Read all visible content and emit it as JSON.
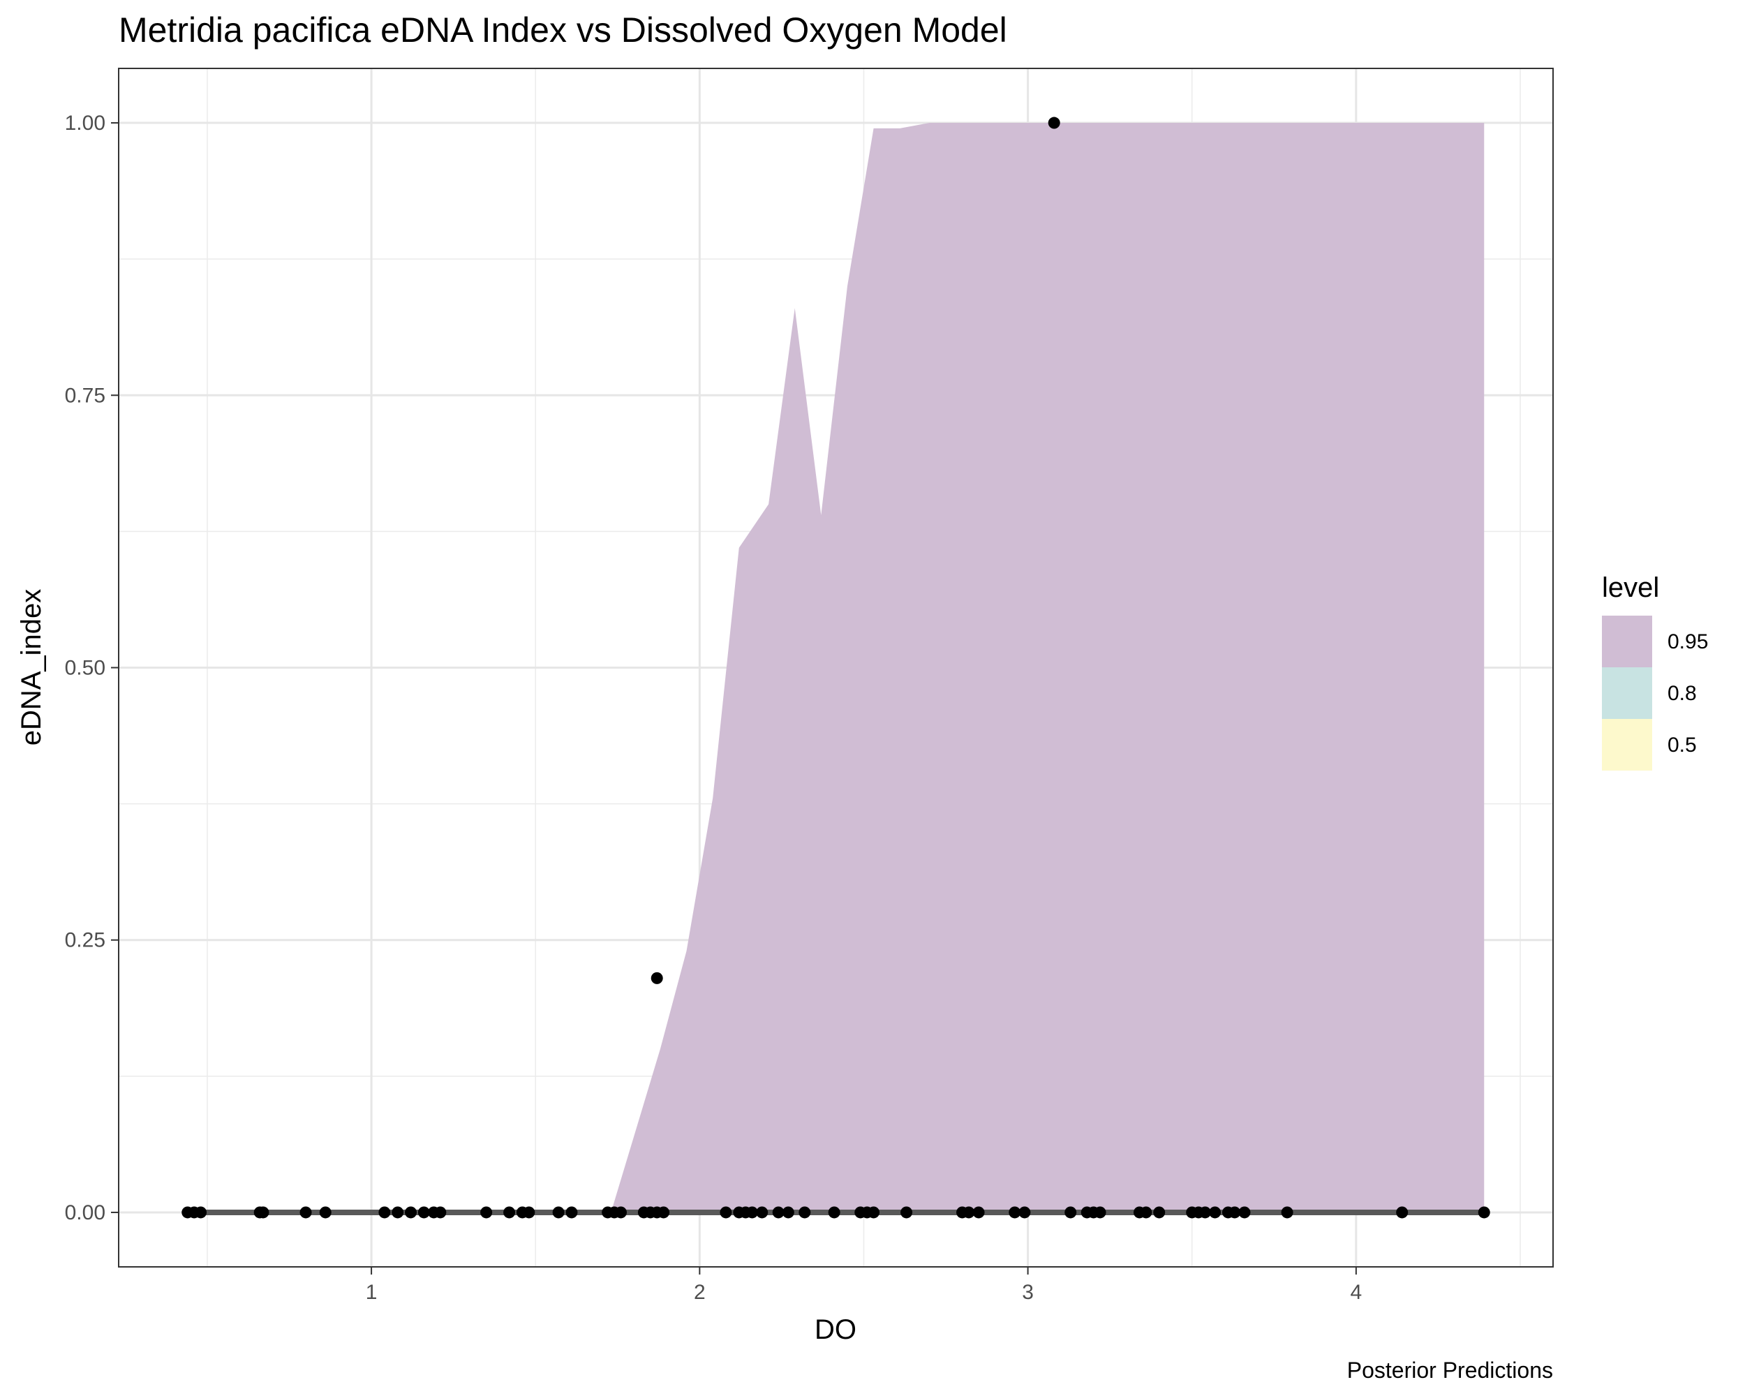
{
  "chart_data": {
    "type": "area",
    "title": "Metridia pacifica eDNA Index vs Dissolved Oxygen Model",
    "xlabel": "DO",
    "ylabel": "eDNA_index",
    "caption": "Posterior Predictions",
    "xlim": [
      0.23,
      4.6
    ],
    "ylim": [
      -0.05,
      1.05
    ],
    "x_ticks": [
      1,
      2,
      3,
      4
    ],
    "x_tick_labels": [
      "1",
      "2",
      "3",
      "4"
    ],
    "y_ticks": [
      0,
      0.25,
      0.5,
      0.75,
      1
    ],
    "y_tick_labels": [
      "0.00",
      "0.25",
      "0.50",
      "0.75",
      "1.00"
    ],
    "grid": true,
    "legend": {
      "title": "level",
      "position": "right",
      "entries": [
        {
          "label": "0.95",
          "color": "#d0bdd4"
        },
        {
          "label": "0.8",
          "color": "#c8e3e2"
        },
        {
          "label": "0.5",
          "color": "#fdf9cc"
        }
      ]
    },
    "band": {
      "level": "0.95",
      "color": "#d0bdd4",
      "lower": 0,
      "upper": [
        {
          "x": 0.44,
          "y": 0
        },
        {
          "x": 1.73,
          "y": 0
        },
        {
          "x": 1.8,
          "y": 0.07
        },
        {
          "x": 1.88,
          "y": 0.15
        },
        {
          "x": 1.96,
          "y": 0.24
        },
        {
          "x": 2.04,
          "y": 0.38
        },
        {
          "x": 2.12,
          "y": 0.61
        },
        {
          "x": 2.21,
          "y": 0.65
        },
        {
          "x": 2.29,
          "y": 0.83
        },
        {
          "x": 2.37,
          "y": 0.64
        },
        {
          "x": 2.45,
          "y": 0.85
        },
        {
          "x": 2.53,
          "y": 0.995
        },
        {
          "x": 2.61,
          "y": 0.995
        },
        {
          "x": 2.7,
          "y": 1.0
        },
        {
          "x": 4.39,
          "y": 1.0
        }
      ]
    },
    "median_line": {
      "color": "#595959",
      "points": [
        {
          "x": 0.44,
          "y": 0
        },
        {
          "x": 4.39,
          "y": 0
        }
      ]
    },
    "points": [
      {
        "x": 0.44,
        "y": 0
      },
      {
        "x": 0.46,
        "y": 0
      },
      {
        "x": 0.48,
        "y": 0
      },
      {
        "x": 0.66,
        "y": 0
      },
      {
        "x": 0.67,
        "y": 0
      },
      {
        "x": 0.8,
        "y": 0
      },
      {
        "x": 0.86,
        "y": 0
      },
      {
        "x": 1.04,
        "y": 0
      },
      {
        "x": 1.08,
        "y": 0
      },
      {
        "x": 1.12,
        "y": 0
      },
      {
        "x": 1.16,
        "y": 0
      },
      {
        "x": 1.19,
        "y": 0
      },
      {
        "x": 1.21,
        "y": 0
      },
      {
        "x": 1.35,
        "y": 0
      },
      {
        "x": 1.42,
        "y": 0
      },
      {
        "x": 1.46,
        "y": 0
      },
      {
        "x": 1.48,
        "y": 0
      },
      {
        "x": 1.57,
        "y": 0
      },
      {
        "x": 1.61,
        "y": 0
      },
      {
        "x": 1.72,
        "y": 0
      },
      {
        "x": 1.74,
        "y": 0
      },
      {
        "x": 1.76,
        "y": 0
      },
      {
        "x": 1.83,
        "y": 0
      },
      {
        "x": 1.85,
        "y": 0
      },
      {
        "x": 1.87,
        "y": 0
      },
      {
        "x": 1.89,
        "y": 0
      },
      {
        "x": 2.08,
        "y": 0
      },
      {
        "x": 2.12,
        "y": 0
      },
      {
        "x": 2.14,
        "y": 0
      },
      {
        "x": 2.16,
        "y": 0
      },
      {
        "x": 2.19,
        "y": 0
      },
      {
        "x": 2.24,
        "y": 0
      },
      {
        "x": 2.27,
        "y": 0
      },
      {
        "x": 2.32,
        "y": 0
      },
      {
        "x": 2.41,
        "y": 0
      },
      {
        "x": 2.49,
        "y": 0
      },
      {
        "x": 2.51,
        "y": 0
      },
      {
        "x": 2.53,
        "y": 0
      },
      {
        "x": 2.63,
        "y": 0
      },
      {
        "x": 2.8,
        "y": 0
      },
      {
        "x": 2.82,
        "y": 0
      },
      {
        "x": 2.85,
        "y": 0
      },
      {
        "x": 2.96,
        "y": 0
      },
      {
        "x": 2.99,
        "y": 0
      },
      {
        "x": 3.13,
        "y": 0
      },
      {
        "x": 3.18,
        "y": 0
      },
      {
        "x": 3.2,
        "y": 0
      },
      {
        "x": 3.22,
        "y": 0
      },
      {
        "x": 3.34,
        "y": 0
      },
      {
        "x": 3.36,
        "y": 0
      },
      {
        "x": 3.4,
        "y": 0
      },
      {
        "x": 3.5,
        "y": 0
      },
      {
        "x": 3.52,
        "y": 0
      },
      {
        "x": 3.54,
        "y": 0
      },
      {
        "x": 3.57,
        "y": 0
      },
      {
        "x": 3.61,
        "y": 0
      },
      {
        "x": 3.63,
        "y": 0
      },
      {
        "x": 3.66,
        "y": 0
      },
      {
        "x": 3.79,
        "y": 0
      },
      {
        "x": 4.14,
        "y": 0
      },
      {
        "x": 4.39,
        "y": 0
      },
      {
        "x": 1.87,
        "y": 0.215
      },
      {
        "x": 3.08,
        "y": 1.0
      }
    ]
  }
}
